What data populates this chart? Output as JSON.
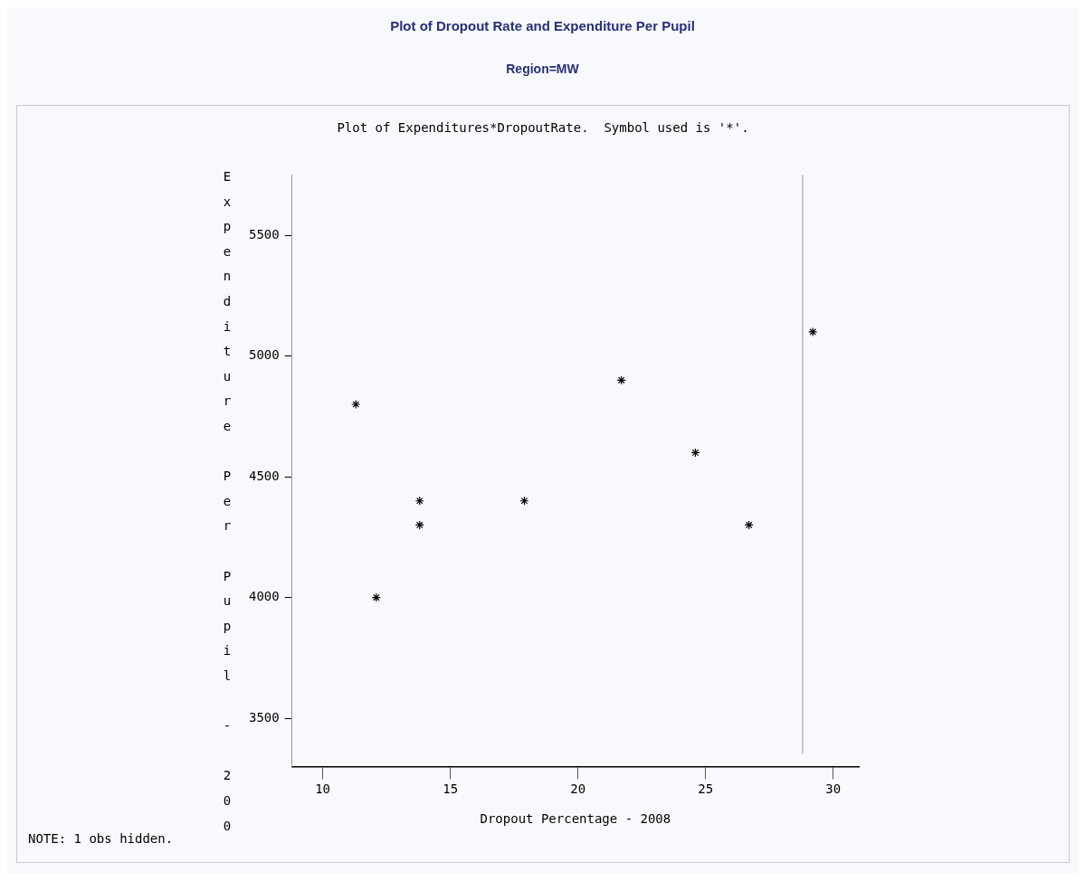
{
  "chart_data": {
    "type": "scatter",
    "title": "Plot of Dropout Rate and Expenditure Per Pupil",
    "subtitle": "Region=MW",
    "xlabel": "Dropout Percentage - 2008",
    "ylabel": "Expenditure Per Pupil - 200",
    "annotations": [
      "Plot of Expenditures*DropoutRate.  Symbol used is '*'.",
      "NOTE: 1 obs hidden."
    ],
    "x": [
      11.3,
      12.1,
      13.8,
      13.8,
      17.9,
      21.7,
      24.6,
      26.7,
      29.2
    ],
    "series": [
      {
        "color": "#000000",
        "values": [
          4800,
          4000,
          4400,
          4300,
          4400,
          4900,
          4600,
          4300,
          5100
        ]
      }
    ],
    "xlim": [
      8.8,
      31
    ],
    "xticks": [
      10,
      15,
      20,
      25,
      30
    ],
    "ylim": [
      3300,
      5750
    ],
    "yticks": [
      3500,
      4000,
      4500,
      5000,
      5500
    ],
    "ref_lines": [
      {
        "axis": "x",
        "value": 28.8,
        "color": "#a09098"
      }
    ],
    "marker": "cross",
    "grid": false,
    "legend": false
  }
}
